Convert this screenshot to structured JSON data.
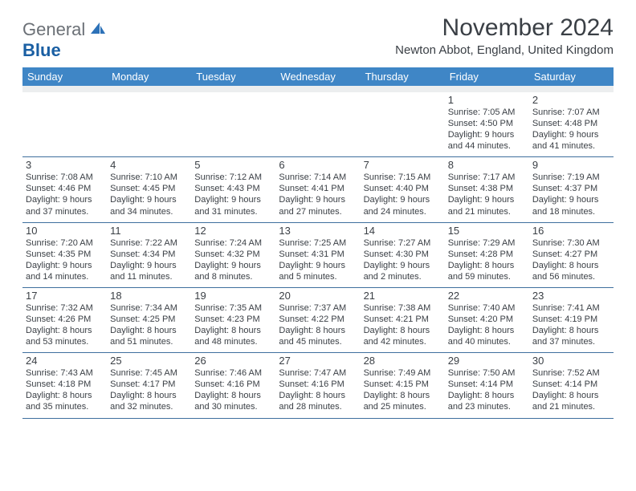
{
  "colors": {
    "header_bg": "#3f86c6",
    "spacer_bg": "#eceeef",
    "rule_color": "#3f6f9e",
    "text": "#3a3f45",
    "logo_gray": "#6b7076",
    "logo_blue": "#1a5fa3",
    "logo_sail": "#2d72b8"
  },
  "logo": {
    "gray": "General",
    "blue": "Blue"
  },
  "title": "November 2024",
  "location": "Newton Abbot, England, United Kingdom",
  "weekdays": [
    "Sunday",
    "Monday",
    "Tuesday",
    "Wednesday",
    "Thursday",
    "Friday",
    "Saturday"
  ],
  "weeks": [
    [
      {
        "n": "",
        "t": ""
      },
      {
        "n": "",
        "t": ""
      },
      {
        "n": "",
        "t": ""
      },
      {
        "n": "",
        "t": ""
      },
      {
        "n": "",
        "t": ""
      },
      {
        "n": "1",
        "t": "Sunrise: 7:05 AM\nSunset: 4:50 PM\nDaylight: 9 hours\nand 44 minutes."
      },
      {
        "n": "2",
        "t": "Sunrise: 7:07 AM\nSunset: 4:48 PM\nDaylight: 9 hours\nand 41 minutes."
      }
    ],
    [
      {
        "n": "3",
        "t": "Sunrise: 7:08 AM\nSunset: 4:46 PM\nDaylight: 9 hours\nand 37 minutes."
      },
      {
        "n": "4",
        "t": "Sunrise: 7:10 AM\nSunset: 4:45 PM\nDaylight: 9 hours\nand 34 minutes."
      },
      {
        "n": "5",
        "t": "Sunrise: 7:12 AM\nSunset: 4:43 PM\nDaylight: 9 hours\nand 31 minutes."
      },
      {
        "n": "6",
        "t": "Sunrise: 7:14 AM\nSunset: 4:41 PM\nDaylight: 9 hours\nand 27 minutes."
      },
      {
        "n": "7",
        "t": "Sunrise: 7:15 AM\nSunset: 4:40 PM\nDaylight: 9 hours\nand 24 minutes."
      },
      {
        "n": "8",
        "t": "Sunrise: 7:17 AM\nSunset: 4:38 PM\nDaylight: 9 hours\nand 21 minutes."
      },
      {
        "n": "9",
        "t": "Sunrise: 7:19 AM\nSunset: 4:37 PM\nDaylight: 9 hours\nand 18 minutes."
      }
    ],
    [
      {
        "n": "10",
        "t": "Sunrise: 7:20 AM\nSunset: 4:35 PM\nDaylight: 9 hours\nand 14 minutes."
      },
      {
        "n": "11",
        "t": "Sunrise: 7:22 AM\nSunset: 4:34 PM\nDaylight: 9 hours\nand 11 minutes."
      },
      {
        "n": "12",
        "t": "Sunrise: 7:24 AM\nSunset: 4:32 PM\nDaylight: 9 hours\nand 8 minutes."
      },
      {
        "n": "13",
        "t": "Sunrise: 7:25 AM\nSunset: 4:31 PM\nDaylight: 9 hours\nand 5 minutes."
      },
      {
        "n": "14",
        "t": "Sunrise: 7:27 AM\nSunset: 4:30 PM\nDaylight: 9 hours\nand 2 minutes."
      },
      {
        "n": "15",
        "t": "Sunrise: 7:29 AM\nSunset: 4:28 PM\nDaylight: 8 hours\nand 59 minutes."
      },
      {
        "n": "16",
        "t": "Sunrise: 7:30 AM\nSunset: 4:27 PM\nDaylight: 8 hours\nand 56 minutes."
      }
    ],
    [
      {
        "n": "17",
        "t": "Sunrise: 7:32 AM\nSunset: 4:26 PM\nDaylight: 8 hours\nand 53 minutes."
      },
      {
        "n": "18",
        "t": "Sunrise: 7:34 AM\nSunset: 4:25 PM\nDaylight: 8 hours\nand 51 minutes."
      },
      {
        "n": "19",
        "t": "Sunrise: 7:35 AM\nSunset: 4:23 PM\nDaylight: 8 hours\nand 48 minutes."
      },
      {
        "n": "20",
        "t": "Sunrise: 7:37 AM\nSunset: 4:22 PM\nDaylight: 8 hours\nand 45 minutes."
      },
      {
        "n": "21",
        "t": "Sunrise: 7:38 AM\nSunset: 4:21 PM\nDaylight: 8 hours\nand 42 minutes."
      },
      {
        "n": "22",
        "t": "Sunrise: 7:40 AM\nSunset: 4:20 PM\nDaylight: 8 hours\nand 40 minutes."
      },
      {
        "n": "23",
        "t": "Sunrise: 7:41 AM\nSunset: 4:19 PM\nDaylight: 8 hours\nand 37 minutes."
      }
    ],
    [
      {
        "n": "24",
        "t": "Sunrise: 7:43 AM\nSunset: 4:18 PM\nDaylight: 8 hours\nand 35 minutes."
      },
      {
        "n": "25",
        "t": "Sunrise: 7:45 AM\nSunset: 4:17 PM\nDaylight: 8 hours\nand 32 minutes."
      },
      {
        "n": "26",
        "t": "Sunrise: 7:46 AM\nSunset: 4:16 PM\nDaylight: 8 hours\nand 30 minutes."
      },
      {
        "n": "27",
        "t": "Sunrise: 7:47 AM\nSunset: 4:16 PM\nDaylight: 8 hours\nand 28 minutes."
      },
      {
        "n": "28",
        "t": "Sunrise: 7:49 AM\nSunset: 4:15 PM\nDaylight: 8 hours\nand 25 minutes."
      },
      {
        "n": "29",
        "t": "Sunrise: 7:50 AM\nSunset: 4:14 PM\nDaylight: 8 hours\nand 23 minutes."
      },
      {
        "n": "30",
        "t": "Sunrise: 7:52 AM\nSunset: 4:14 PM\nDaylight: 8 hours\nand 21 minutes."
      }
    ]
  ]
}
